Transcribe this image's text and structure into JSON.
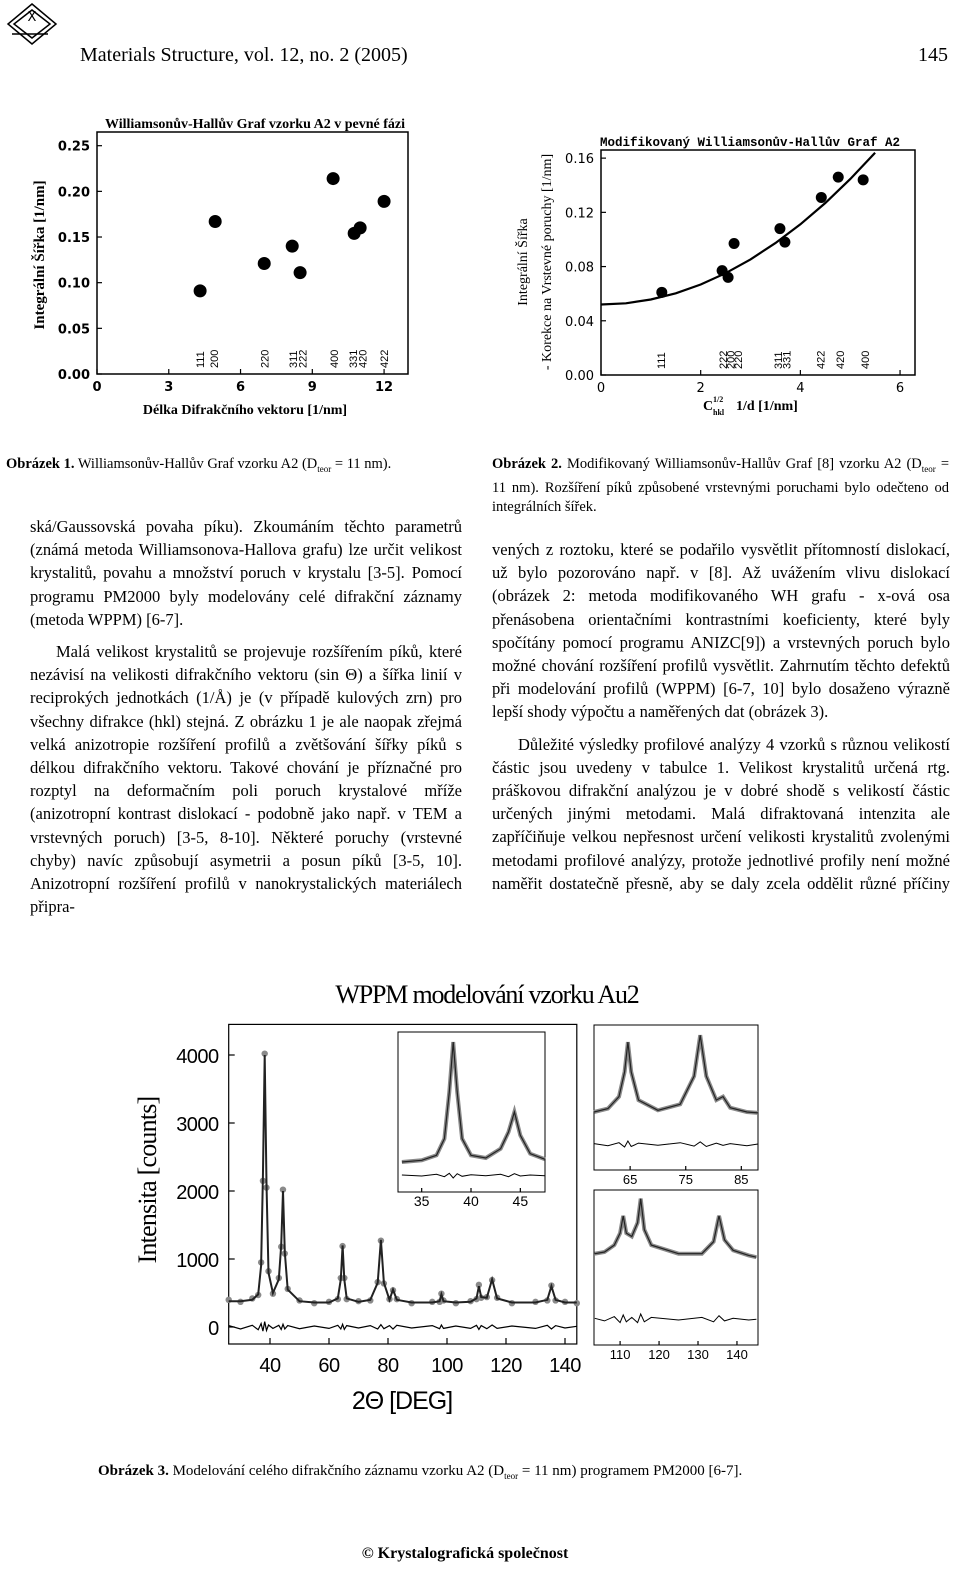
{
  "header": {
    "journal": "Materials Structure, vol. 12,  no. 2 (2005)",
    "page": "145"
  },
  "figure1": {
    "chart": {
      "type": "scatter",
      "title": "Williamsonův-Hallův Graf vzorku A2 v pevné fázi",
      "x_label": "Délka Difrakčního vektoru [1/nm]",
      "y_label": "Integrální Šířka [1/nm]",
      "x": [
        4.31,
        4.94,
        6.99,
        8.16,
        8.49,
        9.87,
        10.75,
        11.0,
        12.0
      ],
      "values": [
        0.091,
        0.167,
        0.121,
        0.14,
        0.111,
        0.214,
        0.154,
        0.16,
        0.189
      ],
      "color": "#000000",
      "xlim": [
        0,
        13
      ],
      "xticks": [
        0,
        3,
        6,
        9,
        12
      ],
      "ylim": [
        0,
        0.265
      ],
      "yticks": [
        {
          "value": 0,
          "label": "0.00"
        },
        0.05,
        {
          "value": 0.1,
          "label": "0.10"
        },
        0.15,
        {
          "value": 0.2,
          "label": "0.20"
        },
        0.25
      ],
      "annotations": [
        {
          "x": 4.3,
          "text": "111"
        },
        {
          "x": 4.9,
          "text": "200"
        },
        {
          "x": 7.0,
          "text": "220"
        },
        {
          "x": 8.2,
          "text": "311"
        },
        {
          "x": 8.6,
          "text": "222"
        },
        {
          "x": 9.9,
          "text": "400"
        },
        {
          "x": 10.7,
          "text": "331"
        },
        {
          "x": 11.1,
          "text": "420"
        },
        {
          "x": 12.0,
          "text": "422"
        }
      ]
    },
    "caption": {
      "label": "Obrázek 1.",
      "text": " Williamsonův-Hallův Graf vzorku A2 (D",
      "sub": "teor",
      "text_after": " = 11 nm)."
    }
  },
  "figure2": {
    "chart": {
      "type": "scatter",
      "title": "Modifikovaný Williamsonův-Hallův Graf A2",
      "x_label": "C",
      "x_label_sub": "hkl",
      "x_label_sup": "1/2",
      "x_label_rest": "1/d [1/nm]",
      "y_label": [
        "Integrální Šířka",
        "- Korekce na Vrstevné poruchy [1/nm]"
      ],
      "points": {
        "x": [
          1.22,
          2.43,
          2.55,
          2.67,
          3.59,
          3.69,
          4.42,
          4.76,
          5.26
        ],
        "values": [
          0.061,
          0.077,
          0.072,
          0.097,
          0.108,
          0.098,
          0.131,
          0.146,
          0.144
        ],
        "color": "#000000"
      },
      "fit": {
        "x": [
          0,
          0.5,
          1,
          1.5,
          2,
          2.5,
          3,
          3.5,
          4,
          4.5,
          5,
          5.5
        ],
        "values": [
          0.052,
          0.0529,
          0.0557,
          0.0603,
          0.0668,
          0.0751,
          0.0853,
          0.0973,
          0.1112,
          0.1269,
          0.1445,
          0.1639
        ],
        "color": "#000000"
      },
      "xlim": [
        0,
        6.3
      ],
      "xticks": [
        0,
        2,
        4,
        6
      ],
      "ylim": [
        0,
        0.166
      ],
      "yticks": [
        {
          "value": 0,
          "label": "0.00"
        },
        0.04,
        0.08,
        0.12,
        0.16
      ],
      "annotations": [
        {
          "x": 1.2,
          "text": "111"
        },
        {
          "x": 2.45,
          "text": "222"
        },
        {
          "x": 2.6,
          "text": "200"
        },
        {
          "x": 2.75,
          "text": "220"
        },
        {
          "x": 3.55,
          "text": "311"
        },
        {
          "x": 3.72,
          "text": "331"
        },
        {
          "x": 4.4,
          "text": "422"
        },
        {
          "x": 4.8,
          "text": "420"
        },
        {
          "x": 5.3,
          "text": "400"
        }
      ]
    },
    "caption": {
      "label": "Obrázek 2.",
      "text": " Modifikovaný Williamsonův-Hallův Graf [8] vzorku A2 (D",
      "sub": "teor",
      "text_after": " = 11 nm). Rozšíření píků způsobené vrstevnými poruchami bylo odečteno od integrálních šířek."
    }
  },
  "text": {
    "left": [
      "ská/Gaussovská povaha píku). Zkoumáním těchto parametrů (známá metoda Williamsonova-Hallova grafu) lze určit velikost krystalitů, povahu a množství poruch v krystalu [3-5]. Pomocí programu PM2000 byly modelovány celé difrakční záznamy (metoda WPPM) [6-7].",
      "Malá velikost krystalitů se projevuje rozšířením píků, které nezávisí na velikosti difrakčního vektoru (sin Θ) a šířka linií v reciprokých jednotkách (1/Å) je (v případě kulových zrn) pro všechny difrakce (hkl) stejná. Z obrázku 1 je ale naopak zřejmá velká anizotropie rozšíření profilů a zvětšování šířky píků s délkou difrakčního vektoru. Takové chování je příznačné pro rozptyl na deformačním poli poruch krystalové mříže (anizotropní kontrast dislokací - podobně jako např. v TEM a vrstevných poruch) [3-5, 8-10]. Některé poruchy (vrstevné chyby) navíc způsobují asymetrii a posun píků [3-5, 10]. Anizotropní rozšíření profilů v nanokrystalických materiálech připra-"
    ],
    "right": [
      "vených z roztoku, které se podařilo vysvětlit přítomností dislokací, už bylo pozorováno např. v [8]. Až uvážením vlivu dislokací (obrázek 2: metoda modifikovaného WH grafu - x-ová osa přenásobena orientačními kontrastními koeficienty, které byly spočítány pomocí programu ANIZC[9]) a vrstevných poruch bylo možné chování rozšíření profilů vysvětlit. Zahrnutím těchto defektů při modelování profilů (WPPM) [6-7, 10] bylo dosaženo výrazně lepší shody výpočtu a naměřených dat (obrázek 3).",
      "Důležité výsledky profilové analýzy 4 vzorků s různou velikostí částic jsou uvedeny v tabulce 1. Velikost krystalitů určená rtg. práškovou difrakční analýzou je v dobré shodě s velikostí částic určených jinými metodami. Malá difraktovaná intenzita ale zapříčiňuje velkou nepřesnost určení velikosti krystalitů zvolenými metodami profilové analýzy, protože jednotlivé profily není možné naměřit dostatečně přesně, aby se daly zcela oddělit různé příčiny"
    ]
  },
  "figure3": {
    "chart": {
      "type": "line",
      "title": "WPPM modelování vzorku Au2",
      "x_label": "2Θ [DEG]",
      "y_label": "Intensita [counts]",
      "x": [
        26,
        30,
        34,
        36,
        37,
        37.6,
        38.2,
        38.8,
        39.5,
        41,
        43,
        43.8,
        44.4,
        45,
        46,
        50,
        55,
        60,
        63,
        64,
        64.6,
        65.2,
        66,
        70,
        74,
        76.5,
        77.6,
        78.6,
        80.5,
        81.7,
        83,
        88,
        95,
        97.5,
        98.1,
        98.8,
        103,
        108,
        110,
        110.8,
        111.6,
        113.5,
        115.3,
        117,
        122,
        130,
        134,
        135.4,
        136.8,
        140,
        144
      ],
      "observed": [
        400,
        370,
        420,
        470,
        950,
        2150,
        4020,
        2050,
        820,
        490,
        720,
        1180,
        2020,
        1080,
        560,
        390,
        350,
        370,
        410,
        720,
        1190,
        720,
        410,
        380,
        390,
        660,
        1270,
        640,
        410,
        540,
        410,
        350,
        370,
        370,
        490,
        390,
        350,
        380,
        410,
        620,
        430,
        440,
        690,
        430,
        350,
        370,
        390,
        610,
        390,
        370,
        350
      ],
      "calculated": [
        380,
        380,
        400,
        480,
        900,
        2200,
        4000,
        2100,
        800,
        500,
        700,
        1200,
        2000,
        1100,
        550,
        380,
        360,
        360,
        420,
        700,
        1200,
        700,
        420,
        370,
        400,
        650,
        1280,
        650,
        400,
        550,
        400,
        360,
        360,
        380,
        480,
        380,
        360,
        370,
        420,
        600,
        440,
        430,
        700,
        420,
        360,
        360,
        400,
        600,
        400,
        360,
        360
      ],
      "difference": [
        20,
        -30,
        25,
        -40,
        50,
        -60,
        80,
        -50,
        30,
        -20,
        25,
        -35,
        40,
        -30,
        20,
        -25,
        15,
        -20,
        25,
        -30,
        40,
        -35,
        20,
        -15,
        20,
        -30,
        35,
        -25,
        20,
        -30,
        25,
        -15,
        20,
        -25,
        30,
        -20,
        15,
        -20,
        25,
        -35,
        20,
        -25,
        30,
        -20,
        15,
        -20,
        25,
        -30,
        20,
        -15,
        10
      ],
      "xlim": [
        26,
        144
      ],
      "xticks": [
        40,
        60,
        80,
        100,
        120,
        140
      ],
      "ylim": [
        -250,
        4450
      ],
      "yticks": [
        0,
        1000,
        2000,
        3000,
        4000
      ],
      "insets": [
        {
          "x": [
            33,
            35,
            36.5,
            37.3,
            37.8,
            38.2,
            38.6,
            39.1,
            40,
            41.5,
            43,
            43.8,
            44.4,
            45,
            46,
            47.5
          ],
          "calculated": [
            400,
            450,
            600,
            1100,
            2500,
            4000,
            2500,
            1100,
            600,
            520,
            800,
            1300,
            1900,
            1200,
            650,
            480
          ],
          "difference": [
            10,
            -20,
            30,
            -40,
            60,
            -80,
            50,
            -30,
            20,
            -10,
            30,
            -40,
            50,
            -20,
            10,
            -10
          ],
          "xlim": [
            32.6,
            47.5
          ],
          "xticks": [
            35,
            40,
            45
          ],
          "ylim": [
            -500,
            4300
          ]
        },
        {
          "x": [
            58.5,
            61,
            63,
            64,
            64.6,
            65.2,
            66.5,
            70,
            74,
            76.5,
            77.6,
            78.7,
            80.5,
            81.7,
            83,
            86,
            88
          ],
          "calculated": [
            380,
            420,
            560,
            850,
            1200,
            850,
            520,
            400,
            470,
            800,
            1280,
            800,
            520,
            560,
            430,
            380,
            370
          ],
          "difference": [
            10,
            -15,
            20,
            -30,
            40,
            -25,
            15,
            -10,
            20,
            -20,
            30,
            -25,
            15,
            -10,
            10,
            -15,
            5
          ],
          "xlim": [
            58.5,
            88
          ],
          "xticks": [
            65,
            75,
            85
          ],
          "ylim": [
            -300,
            1400
          ]
        },
        {
          "x": [
            103.5,
            106,
            108.5,
            110,
            110.8,
            111.6,
            113,
            114.5,
            115.3,
            116.2,
            118,
            125,
            131,
            134,
            135.4,
            136.8,
            139,
            143,
            145
          ],
          "calculated": [
            380,
            390,
            430,
            500,
            600,
            500,
            480,
            560,
            700,
            520,
            430,
            380,
            380,
            450,
            600,
            460,
            400,
            370,
            360
          ],
          "difference": [
            5,
            -10,
            15,
            -20,
            25,
            -15,
            10,
            -20,
            30,
            -15,
            10,
            -5,
            10,
            -15,
            20,
            -10,
            5,
            -5,
            0
          ],
          "xlim": [
            103.3,
            145.4
          ],
          "xticks": [
            110,
            120,
            130,
            140
          ],
          "ylim": [
            -150,
            750
          ]
        }
      ]
    },
    "caption": {
      "label": "Obrázek 3.",
      "text": " Modelování celého difrakčního záznamu vzorku A2 (D",
      "sub": "teor",
      "text_after": " = 11 nm) programem PM2000 [6-7]."
    }
  },
  "footer": "© Krystalografická společnost"
}
